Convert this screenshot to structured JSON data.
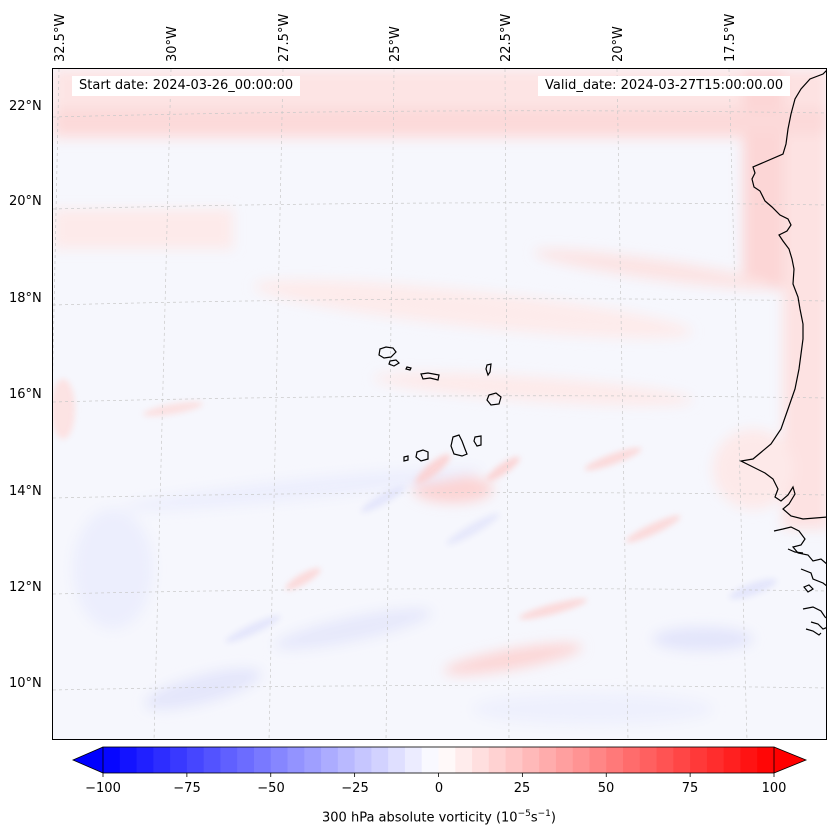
{
  "header": {
    "start_date": "Start date: 2024-03-26_00:00:00",
    "valid_date": "Valid_date: 2024-03-27T15:00:00.00"
  },
  "longitude_labels": [
    "32.5°W",
    "30°W",
    "27.5°W",
    "25°W",
    "22.5°W",
    "20°W",
    "17.5°W"
  ],
  "latitude_labels": [
    "22°N",
    "20°N",
    "18°N",
    "16°N",
    "14°N",
    "12°N",
    "10°N"
  ],
  "colorbar": {
    "title_main": "300 hPa absolute vorticity (10",
    "title_exp1": "−5",
    "title_mid": "s",
    "title_exp2": "−1",
    "title_end": ")",
    "ticks": [
      "−100",
      "−75",
      "−50",
      "−25",
      "0",
      "25",
      "50",
      "75",
      "100"
    ],
    "min": -100,
    "max": 100,
    "neg_color": "#0000ff",
    "pos_color": "#ff0000",
    "extend": "both"
  },
  "map": {
    "variable": "300 hPa absolute vorticity",
    "projection": "Lambert conformal",
    "gridlines": true,
    "coastlines": true
  }
}
